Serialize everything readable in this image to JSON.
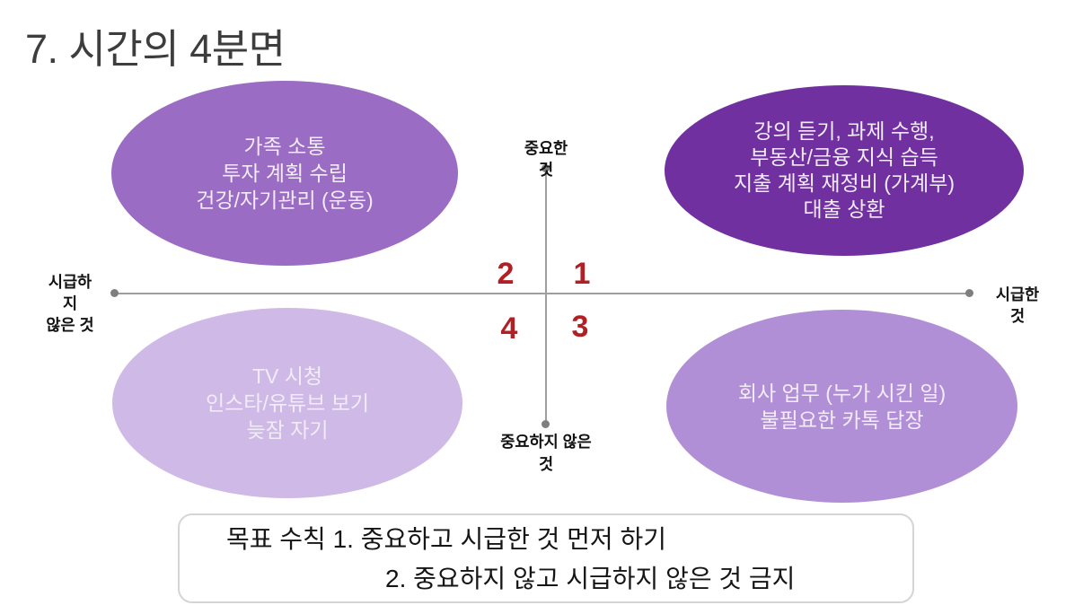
{
  "title": "7. 시간의 4분면",
  "colors": {
    "q1_fill": "#7030a0",
    "q2_fill": "#9b6cc3",
    "q3_fill": "#b18fd6",
    "q4_fill": "#cfb9e6",
    "number_red": "#b02025",
    "axis_gray": "#9e9e9e"
  },
  "axes": {
    "top_label": "중요한\n것",
    "bottom_label": "중요하지 않은\n것",
    "left_label": "시급하\n지\n않은 것",
    "right_label": "시급한\n것"
  },
  "quadrant_numbers": {
    "q1": "1",
    "q2": "2",
    "q3": "3",
    "q4": "4"
  },
  "quadrants": {
    "q1": {
      "text": "강의 듣기, 과제 수행,\n부동산/금융 지식 습득\n지출 계획 재정비 (가계부)\n대출 상환"
    },
    "q2": {
      "text": "가족 소통\n투자 계획 수립\n건강/자기관리 (운동)"
    },
    "q3": {
      "text": "회사 업무 (누가 시킨 일)\n불필요한 카톡 답장"
    },
    "q4": {
      "text": "TV 시청\n인스타/유튜브 보기\n늦잠 자기"
    }
  },
  "rules_box": {
    "line1": "목표 수칙 1. 중요하고 시급한 것 먼저 하기",
    "line2": "2. 중요하지 않고 시급하지 않은 것 금지"
  }
}
